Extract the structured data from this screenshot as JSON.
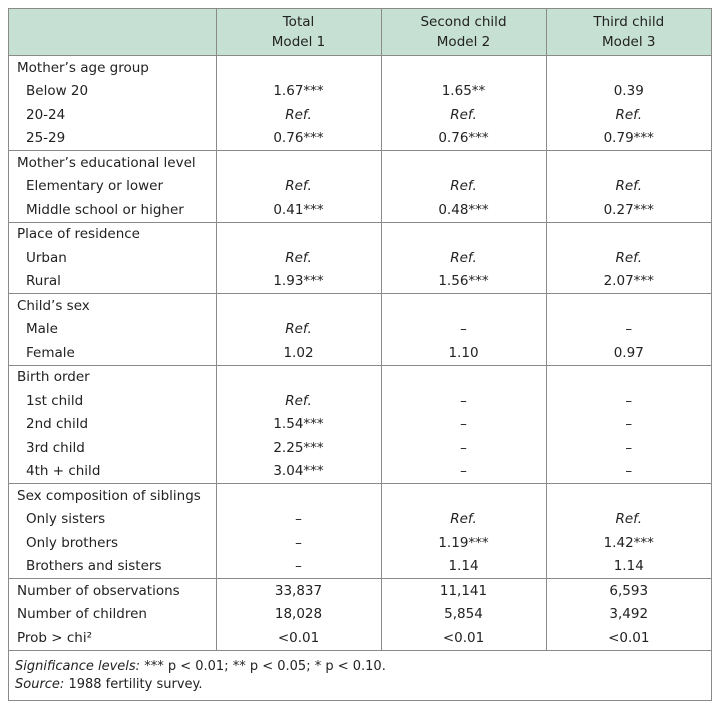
{
  "header": {
    "columns": [
      {
        "line1": "Total",
        "line2": "Model 1"
      },
      {
        "line1": "Second child",
        "line2": "Model 2"
      },
      {
        "line1": "Third child",
        "line2": "Model 3"
      }
    ]
  },
  "sections": [
    {
      "title": "Mother’s age group",
      "rows": [
        {
          "label": "Below 20",
          "values": [
            "1.67***",
            "1.65**",
            "0.39"
          ]
        },
        {
          "label": "20-24",
          "values": [
            "Ref.",
            "Ref.",
            "Ref."
          ]
        },
        {
          "label": "25-29",
          "values": [
            "0.76***",
            "0.76***",
            "0.79***"
          ]
        }
      ]
    },
    {
      "title": "Mother’s educational level",
      "rows": [
        {
          "label": "Elementary or lower",
          "values": [
            "Ref.",
            "Ref.",
            "Ref."
          ]
        },
        {
          "label": "Middle school or higher",
          "values": [
            "0.41***",
            "0.48***",
            "0.27***"
          ]
        }
      ]
    },
    {
      "title": "Place of residence",
      "rows": [
        {
          "label": "Urban",
          "values": [
            "Ref.",
            "Ref.",
            "Ref."
          ]
        },
        {
          "label": "Rural",
          "values": [
            "1.93***",
            "1.56***",
            "2.07***"
          ]
        }
      ]
    },
    {
      "title": "Child’s sex",
      "rows": [
        {
          "label": "Male",
          "values": [
            "Ref.",
            "–",
            "–"
          ]
        },
        {
          "label": "Female",
          "values": [
            "1.02",
            "1.10",
            "0.97"
          ]
        }
      ]
    },
    {
      "title": "Birth order",
      "rows": [
        {
          "label": "1st child",
          "values": [
            "Ref.",
            "–",
            "–"
          ]
        },
        {
          "label": "2nd child",
          "values": [
            "1.54***",
            "–",
            "–"
          ]
        },
        {
          "label": "3rd child",
          "values": [
            "2.25***",
            "–",
            "–"
          ]
        },
        {
          "label": "4th + child",
          "values": [
            "3.04***",
            "–",
            "–"
          ]
        }
      ]
    },
    {
      "title": "Sex composition of siblings",
      "rows": [
        {
          "label": "Only sisters",
          "values": [
            "–",
            "Ref.",
            "Ref."
          ]
        },
        {
          "label": "Only brothers",
          "values": [
            "–",
            "1.19***",
            "1.42***"
          ]
        },
        {
          "label": "Brothers and sisters",
          "values": [
            "–",
            "1.14",
            "1.14"
          ]
        }
      ]
    }
  ],
  "stats": [
    {
      "label": "Number of observations",
      "values": [
        "33,837",
        "11,141",
        "6,593"
      ]
    },
    {
      "label": "Number of children",
      "values": [
        "18,028",
        "5,854",
        "3,492"
      ]
    },
    {
      "label": "Prob > chi²",
      "values": [
        "<0.01",
        "<0.01",
        "<0.01"
      ]
    }
  ],
  "notes": [
    {
      "label": "Significance levels:",
      "text": "*** p < 0.01; ** p < 0.05; * p < 0.10."
    },
    {
      "label": "Source:",
      "text": "1988 fertility survey."
    }
  ]
}
